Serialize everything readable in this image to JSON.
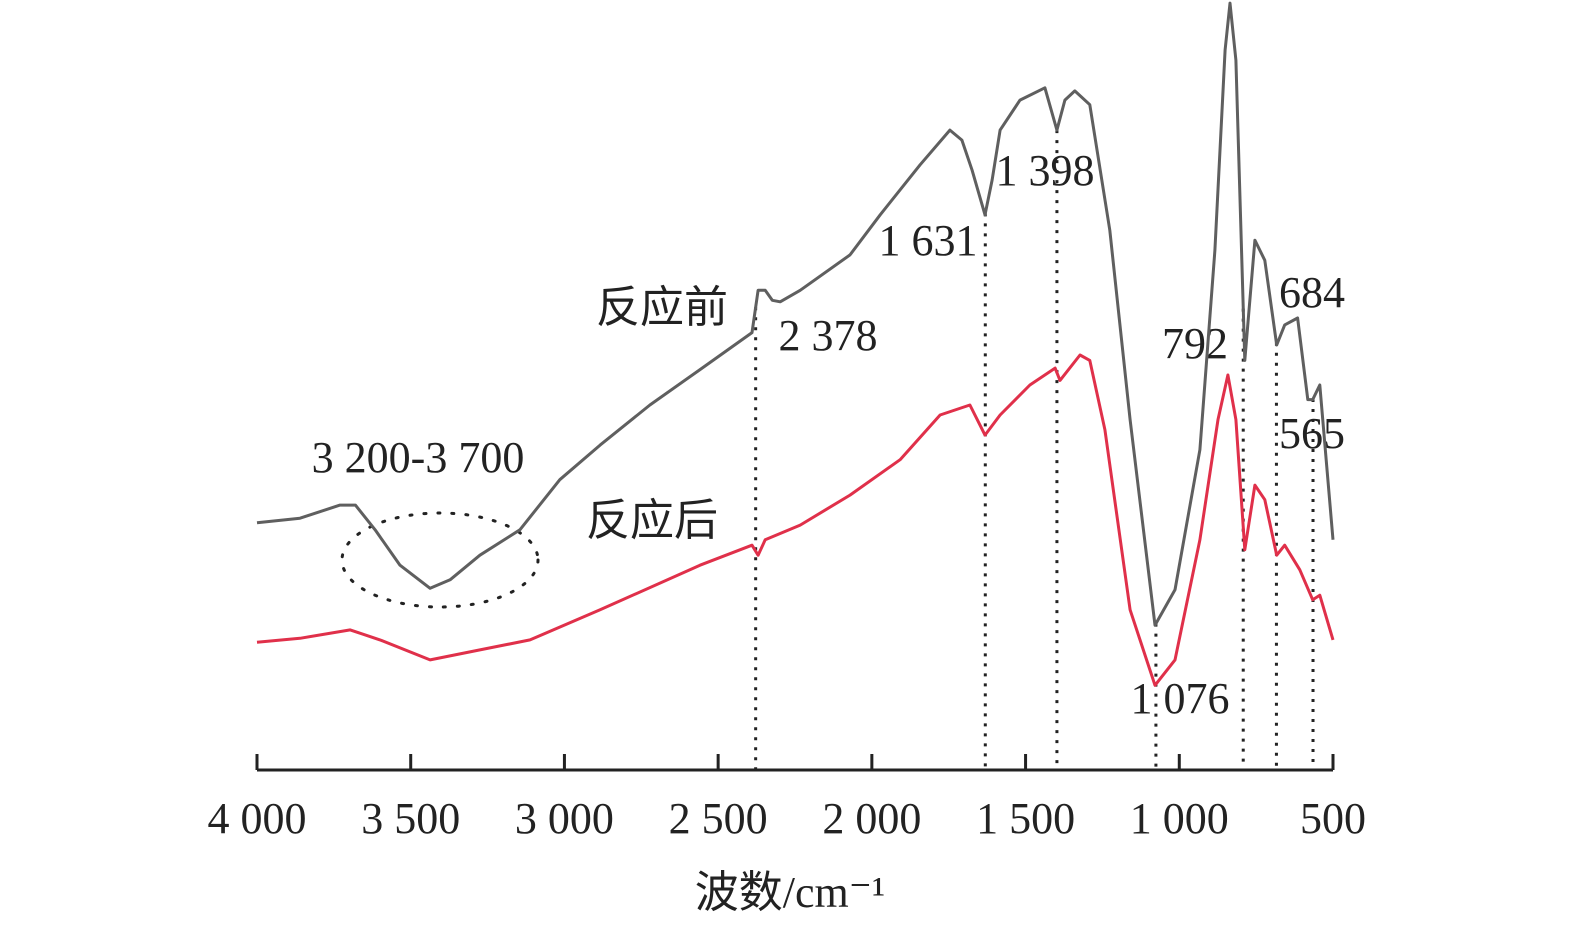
{
  "chart_data": {
    "type": "line",
    "x_label": "波数/cm⁻¹",
    "xlim": [
      4000,
      500
    ],
    "ylim": [
      0,
      100
    ],
    "xticks": [
      {
        "value": 4000,
        "label": "4 000"
      },
      {
        "value": 3500,
        "label": "3 500"
      },
      {
        "value": 3000,
        "label": "3 000"
      },
      {
        "value": 2500,
        "label": "2 500"
      },
      {
        "value": 2000,
        "label": "2 000"
      },
      {
        "value": 1500,
        "label": "1 500"
      },
      {
        "value": 1000,
        "label": "1 000"
      },
      500
    ],
    "region_label": "3 200-3 700",
    "markers": [
      {
        "value": 2378,
        "label": "2 378"
      },
      {
        "value": 1631,
        "label": "1 631"
      },
      {
        "value": 1398,
        "label": "1 398"
      },
      {
        "value": 1076,
        "label": "1 076"
      },
      792,
      684,
      565
    ],
    "series": [
      {
        "name": "反应前",
        "color": "#5f5f5f",
        "x": [
          4000,
          3860,
          3730,
          3680,
          3616,
          3535,
          3437,
          3372,
          3275,
          3145,
          3015,
          2884,
          2722,
          2559,
          2390,
          2370,
          2347,
          2324,
          2298,
          2233,
          2071,
          1973,
          1843,
          1746,
          1707,
          1674,
          1632,
          1609,
          1583,
          1518,
          1437,
          1398,
          1372,
          1340,
          1291,
          1226,
          1160,
          1079,
          1014,
          933,
          884,
          851,
          835,
          816,
          787,
          754,
          722,
          683,
          657,
          615,
          582,
          566,
          543,
          500
        ],
        "values": [
          32.1,
          32.7,
          34.4,
          34.4,
          31.2,
          26.6,
          23.6,
          24.7,
          27.9,
          31.2,
          37.7,
          42.2,
          47.4,
          52.0,
          56.8,
          62.3,
          62.3,
          61.0,
          60.8,
          62.3,
          66.9,
          72.1,
          78.6,
          83.1,
          81.8,
          77.9,
          72.1,
          76.6,
          83.1,
          87.0,
          88.6,
          83.1,
          87.0,
          88.2,
          86.4,
          70.1,
          45.5,
          18.8,
          23.4,
          41.6,
          67.5,
          93.5,
          99.6,
          92.2,
          53.2,
          68.8,
          66.2,
          55.2,
          57.8,
          58.7,
          48.1,
          48.1,
          50.0,
          29.9
        ]
      },
      {
        "name": "反应后",
        "color": "#e0304a",
        "x": [
          4000,
          3860,
          3697,
          3600,
          3437,
          3275,
          3112,
          2884,
          2559,
          2390,
          2370,
          2347,
          2233,
          2071,
          1908,
          1778,
          1681,
          1632,
          1583,
          1486,
          1404,
          1388,
          1323,
          1291,
          1242,
          1160,
          1079,
          1014,
          933,
          874,
          842,
          816,
          787,
          754,
          722,
          683,
          657,
          608,
          566,
          543,
          500
        ],
        "values": [
          16.6,
          17.1,
          18.2,
          16.9,
          14.3,
          15.6,
          16.9,
          20.8,
          26.6,
          29.2,
          27.9,
          29.9,
          31.8,
          35.7,
          40.3,
          46.1,
          47.4,
          43.5,
          46.1,
          50.0,
          52.2,
          50.6,
          53.9,
          53.2,
          44.2,
          20.8,
          11.0,
          14.3,
          29.9,
          45.5,
          51.3,
          45.5,
          28.6,
          37.0,
          35.1,
          27.9,
          29.2,
          26.0,
          22.1,
          22.7,
          16.9
        ]
      }
    ]
  }
}
